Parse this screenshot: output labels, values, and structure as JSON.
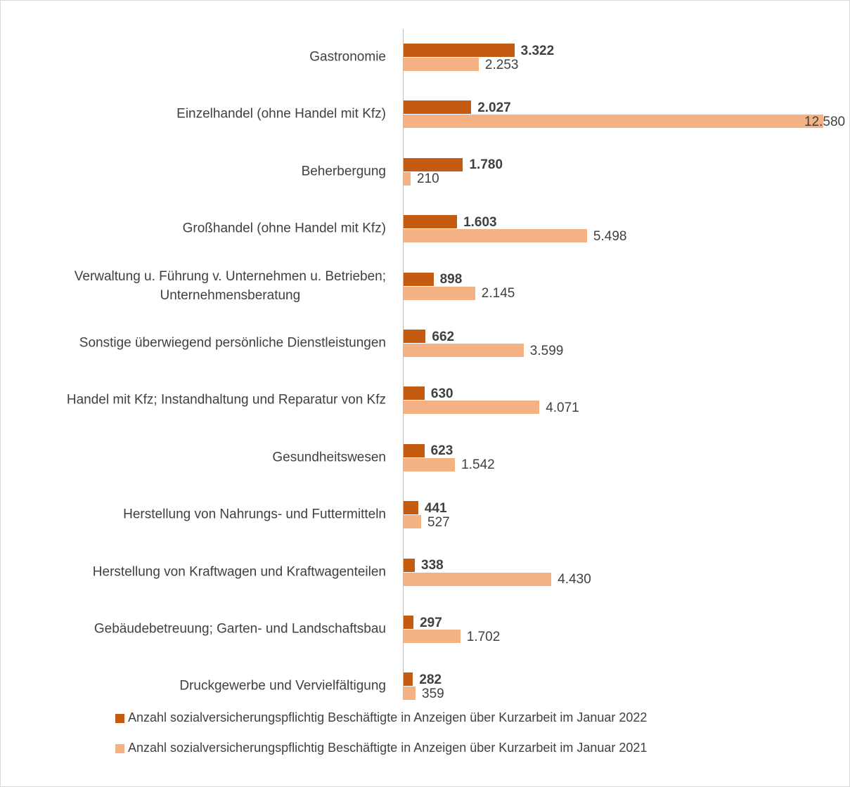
{
  "chart_data": {
    "type": "hbar",
    "categories": [
      "Gastronomie",
      "Einzelhandel (ohne Handel mit Kfz)",
      "Beherbergung",
      "Großhandel (ohne Handel mit Kfz)",
      "Verwaltung u. Führung v. Unternehmen u. Betrieben;\nUnternehmensberatung",
      "Sonstige überwiegend persönliche Dienstleistungen",
      "Handel mit Kfz; Instandhaltung und Reparatur von Kfz",
      "Gesundheitswesen",
      "Herstellung von Nahrungs- und Futtermitteln",
      "Herstellung von Kraftwagen und Kraftwagenteilen",
      "Gebäudebetreuung; Garten- und Landschaftsbau",
      "Druckgewerbe und Vervielfältigung"
    ],
    "series": [
      {
        "name": "Anzahl sozialversicherungspflichtig Beschäftigte in Anzeigen über Kurzarbeit im Januar 2022",
        "color": "#c55a11",
        "values": [
          3322,
          2027,
          1780,
          1603,
          898,
          662,
          630,
          623,
          441,
          338,
          297,
          282
        ],
        "value_labels": [
          "3.322",
          "2.027",
          "1.780",
          "1.603",
          "898",
          "662",
          "630",
          "623",
          "441",
          "338",
          "297",
          "282"
        ]
      },
      {
        "name": "Anzahl sozialversicherungspflichtig Beschäftigte in Anzeigen über Kurzarbeit im Januar 2021",
        "color": "#f4b183",
        "values": [
          2253,
          12580,
          210,
          5498,
          2145,
          3599,
          4071,
          1542,
          527,
          4430,
          1702,
          359
        ],
        "value_labels": [
          "2.253",
          "12.580",
          "210",
          "5.498",
          "2.145",
          "3.599",
          "4.071",
          "1.542",
          "527",
          "4.430",
          "1.702",
          "359"
        ]
      }
    ]
  }
}
